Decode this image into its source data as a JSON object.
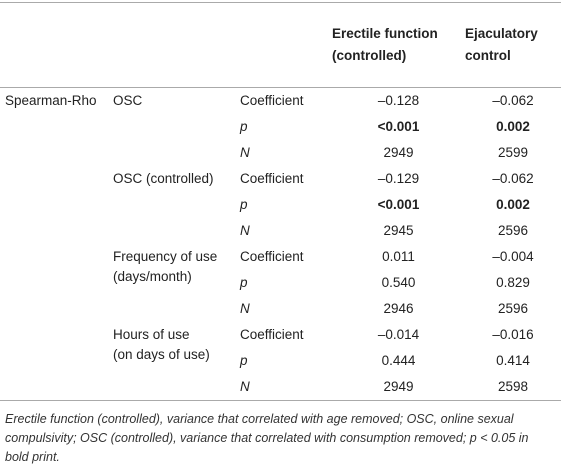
{
  "header": {
    "columns": [
      "Erectile function\n(controlled)",
      "Ejaculatory\ncontrol"
    ]
  },
  "table": {
    "group": "Spearman-Rho",
    "measures": [
      {
        "label": "OSC",
        "rows": [
          {
            "stat": "Coefficient",
            "values": [
              "–0.128",
              "–0.062"
            ]
          },
          {
            "stat": "p",
            "italic": true,
            "bold": true,
            "values": [
              "<0.001",
              "0.002"
            ]
          },
          {
            "stat": "N",
            "italic": true,
            "values": [
              "2949",
              "2599"
            ]
          }
        ]
      },
      {
        "label": "OSC (controlled)",
        "rows": [
          {
            "stat": "Coefficient",
            "values": [
              "–0.129",
              "–0.062"
            ]
          },
          {
            "stat": "p",
            "italic": true,
            "bold": true,
            "values": [
              "<0.001",
              "0.002"
            ]
          },
          {
            "stat": "N",
            "italic": true,
            "values": [
              "2945",
              "2596"
            ]
          }
        ]
      },
      {
        "label": "Frequency of use\n(days/month)",
        "rows": [
          {
            "stat": "Coefficient",
            "values": [
              "0.011",
              "–0.004"
            ]
          },
          {
            "stat": "p",
            "italic": true,
            "values": [
              "0.540",
              "0.829"
            ]
          },
          {
            "stat": "N",
            "italic": true,
            "values": [
              "2946",
              "2596"
            ]
          }
        ]
      },
      {
        "label": "Hours of use\n(on days of use)",
        "rows": [
          {
            "stat": "Coefficient",
            "values": [
              "–0.014",
              "–0.016"
            ]
          },
          {
            "stat": "p",
            "italic": true,
            "values": [
              "0.444",
              "0.414"
            ]
          },
          {
            "stat": "N",
            "italic": true,
            "values": [
              "2949",
              "2598"
            ]
          }
        ]
      }
    ]
  },
  "footnote": "Erectile function (controlled), variance that correlated with age removed; OSC, online sexual compulsivity; OSC (controlled), variance that correlated with consumption removed; p < 0.05 in bold print."
}
